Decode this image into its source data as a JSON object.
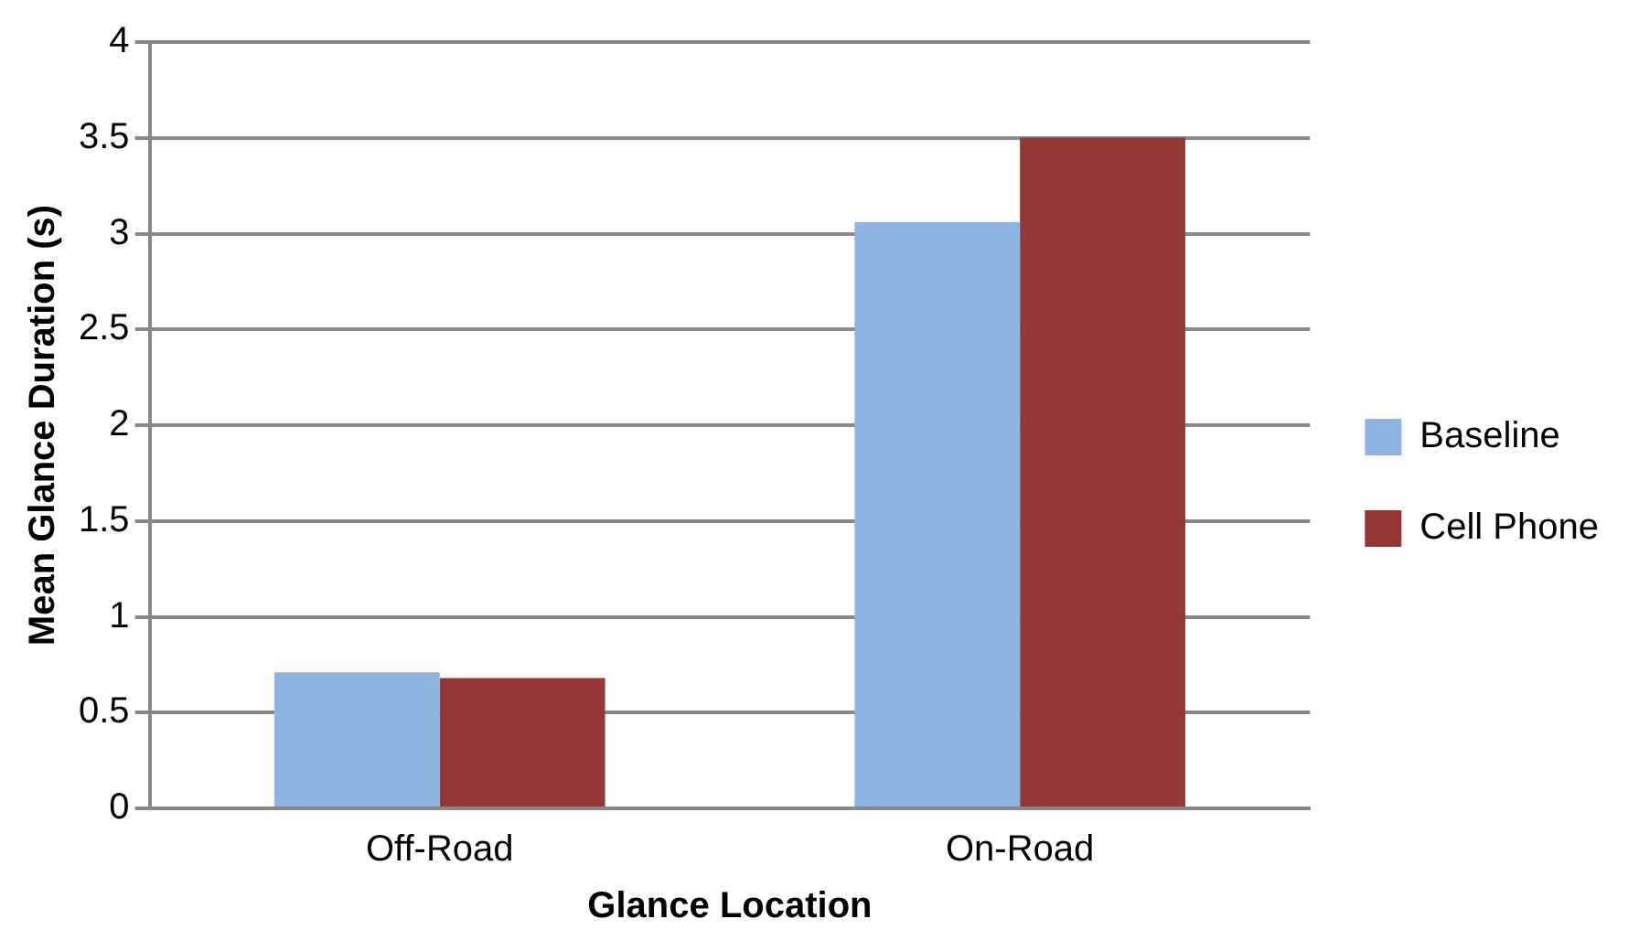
{
  "chart_data": {
    "type": "bar",
    "xlabel": "Glance Location",
    "ylabel": "Mean Glance Duration (s)",
    "categories": [
      "Off-Road",
      "On-Road"
    ],
    "series": [
      {
        "name": "Baseline",
        "color": "#8db4e2",
        "values": [
          0.71,
          3.06
        ]
      },
      {
        "name": "Cell Phone",
        "color": "#953735",
        "values": [
          0.68,
          3.5
        ]
      }
    ],
    "ylim": [
      0,
      4
    ],
    "yticks": [
      0,
      0.5,
      1,
      1.5,
      2,
      2.5,
      3,
      3.5,
      4
    ],
    "grid": "y",
    "legend": "right"
  }
}
